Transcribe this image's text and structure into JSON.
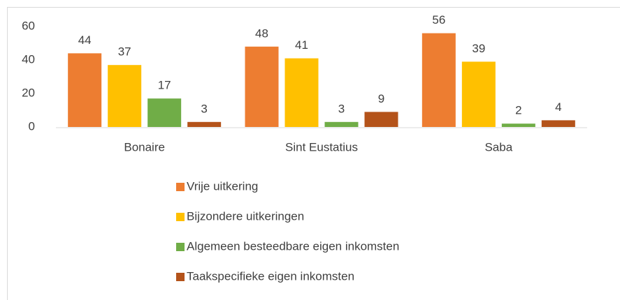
{
  "chart_data": {
    "type": "bar",
    "categories": [
      "Bonaire",
      "Sint Eustatius",
      "Saba"
    ],
    "series": [
      {
        "name": "Vrije uitkering",
        "color": "#ed7d31",
        "values": [
          44,
          48,
          56
        ]
      },
      {
        "name": "Bijzondere uitkeringen",
        "color": "#ffc000",
        "values": [
          37,
          41,
          39
        ]
      },
      {
        "name": "Algemeen besteedbare eigen inkomsten",
        "color": "#70ad47",
        "values": [
          17,
          3,
          2
        ]
      },
      {
        "name": "Taakspecifieke eigen inkomsten",
        "color": "#b4531a",
        "values": [
          3,
          9,
          4
        ]
      }
    ],
    "ylim": [
      0,
      60
    ],
    "yticks": [
      0,
      20,
      40,
      60
    ],
    "grid": false
  }
}
